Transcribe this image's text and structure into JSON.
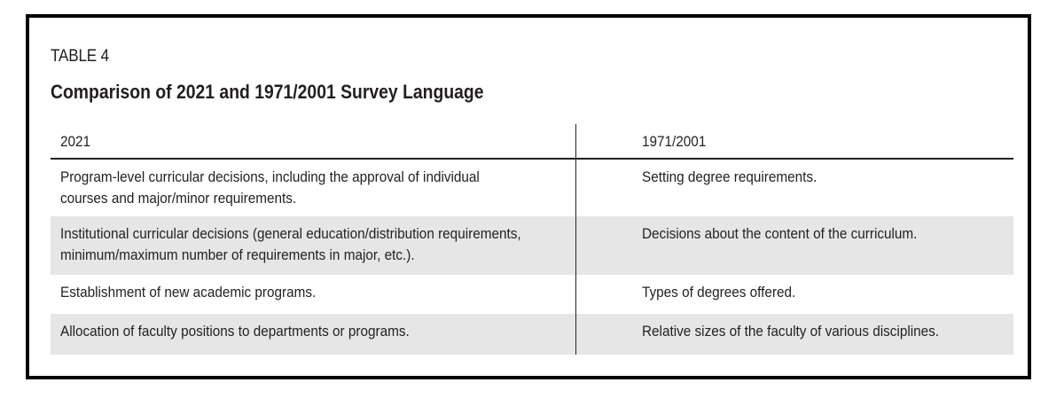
{
  "table": {
    "label": "TABLE 4",
    "title": "Comparison of 2021 and 1971/2001 Survey Language",
    "headers": [
      "2021",
      "1971/2001"
    ],
    "rows": [
      {
        "col_2021": [
          "Program-level curricular decisions, including the approval of individual",
          "courses and major/minor requirements."
        ],
        "col_1971_2001": "Setting degree requirements."
      },
      {
        "col_2021": [
          "Institutional curricular decisions (general education/distribution requirements,",
          "minimum/maximum number of requirements in major, etc.)."
        ],
        "col_1971_2001": "Decisions about the content of the curriculum."
      },
      {
        "col_2021": [
          "Establishment of new academic programs."
        ],
        "col_1971_2001": "Types of degrees offered."
      },
      {
        "col_2021": [
          "Allocation of faculty positions to departments or programs."
        ],
        "col_1971_2001": "Relative sizes of the faculty of various disciplines."
      }
    ]
  }
}
